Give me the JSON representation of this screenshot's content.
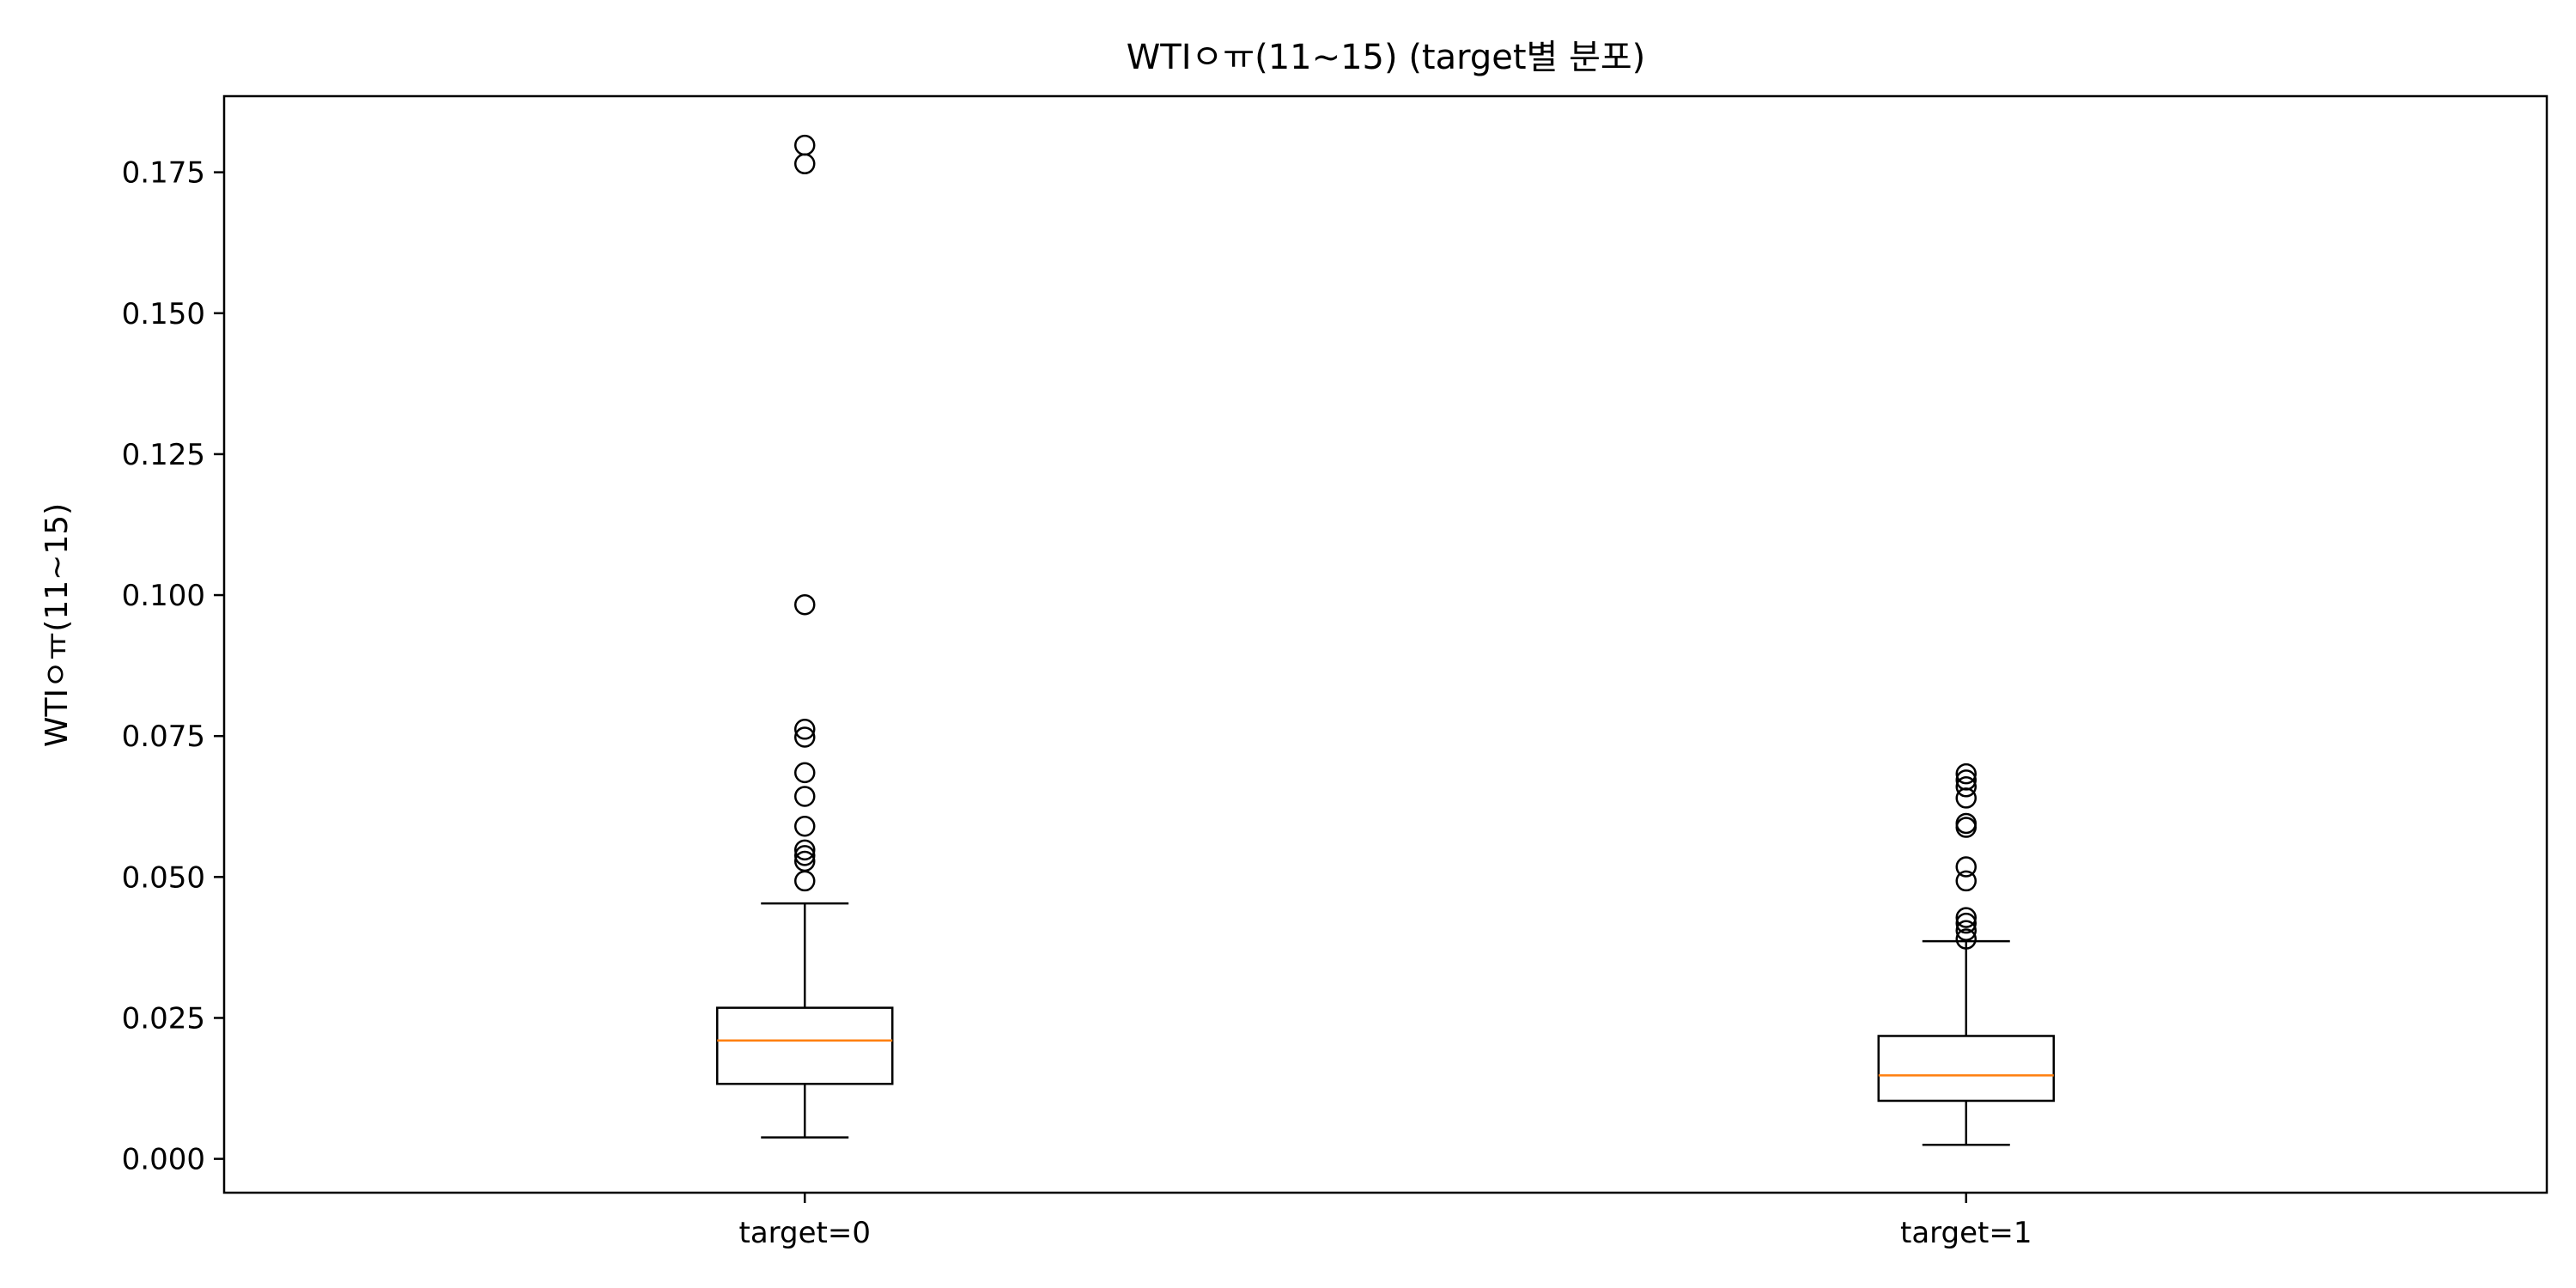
{
  "chart_data": {
    "type": "box",
    "title": "WTIㅇㅠ(11~15) (target별 분포)",
    "xlabel": "",
    "ylabel": "WTIㅇㅠ(11~15)",
    "ylim": [
      -0.006,
      0.1885
    ],
    "yticks": [
      "0.000",
      "0.025",
      "0.050",
      "0.075",
      "0.100",
      "0.125",
      "0.150",
      "0.175"
    ],
    "grid": false,
    "categories": [
      "target=0",
      "target=1"
    ],
    "boxes": [
      {
        "name": "target=0",
        "whisker_low": 0.0038,
        "q1": 0.0133,
        "median": 0.021,
        "q3": 0.0268,
        "whisker_high": 0.0453,
        "outliers": [
          0.0493,
          0.0528,
          0.0538,
          0.0548,
          0.059,
          0.0643,
          0.0685,
          0.0748,
          0.0762,
          0.0983,
          0.1765,
          0.1798
        ]
      },
      {
        "name": "target=1",
        "whisker_low": 0.0025,
        "q1": 0.0103,
        "median": 0.0148,
        "q3": 0.0218,
        "whisker_high": 0.0386,
        "outliers": [
          0.039,
          0.0405,
          0.0418,
          0.0428,
          0.0493,
          0.0518,
          0.0588,
          0.0595,
          0.064,
          0.066,
          0.0672,
          0.0683
        ]
      }
    ],
    "colors": {
      "median": "#ff7f0e",
      "box": "#000000"
    }
  }
}
